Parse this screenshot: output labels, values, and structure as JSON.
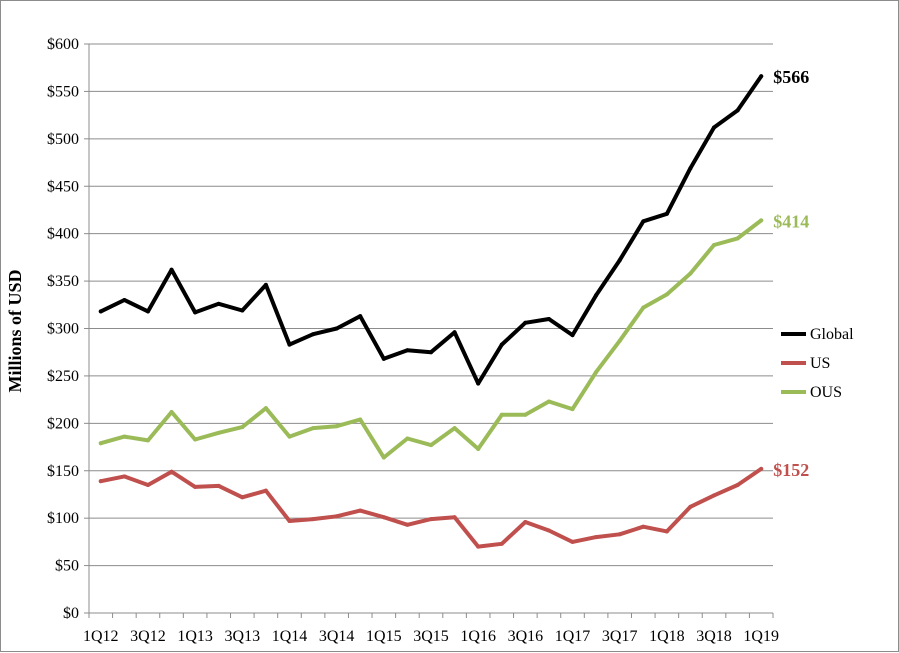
{
  "chart_data": {
    "type": "line",
    "title": "",
    "xlabel": "",
    "ylabel": "Millions of USD",
    "ylim": [
      0,
      600
    ],
    "y_ticks": [
      "$0",
      "$50",
      "$100",
      "$150",
      "$200",
      "$250",
      "$300",
      "$350",
      "$400",
      "$450",
      "$500",
      "$550",
      "$600"
    ],
    "y_tick_values": [
      0,
      50,
      100,
      150,
      200,
      250,
      300,
      350,
      400,
      450,
      500,
      550,
      600
    ],
    "grid": "horizontal",
    "legend_position": "right",
    "categories": [
      "1Q12",
      "2Q12",
      "3Q12",
      "4Q12",
      "1Q13",
      "2Q13",
      "3Q13",
      "4Q13",
      "1Q14",
      "2Q14",
      "3Q14",
      "4Q14",
      "1Q15",
      "2Q15",
      "3Q15",
      "4Q15",
      "1Q16",
      "2Q16",
      "3Q16",
      "4Q16",
      "1Q17",
      "2Q17",
      "3Q17",
      "4Q17",
      "1Q18",
      "2Q18",
      "3Q18",
      "4Q18",
      "1Q19"
    ],
    "x_tick_labels": [
      "1Q12",
      "3Q12",
      "1Q13",
      "3Q13",
      "1Q14",
      "3Q14",
      "1Q15",
      "3Q15",
      "1Q16",
      "3Q16",
      "1Q17",
      "3Q17",
      "1Q18",
      "3Q18",
      "1Q19"
    ],
    "series": [
      {
        "name": "Global",
        "color": "#000000",
        "values": [
          318,
          330,
          318,
          362,
          317,
          326,
          319,
          346,
          283,
          294,
          300,
          313,
          268,
          277,
          275,
          296,
          242,
          283,
          306,
          310,
          293,
          335,
          372,
          413,
          421,
          469,
          512,
          530,
          566
        ],
        "end_label": "$566"
      },
      {
        "name": "US",
        "color": "#c0504d",
        "values": [
          139,
          144,
          135,
          149,
          133,
          134,
          122,
          129,
          97,
          99,
          102,
          108,
          101,
          93,
          99,
          101,
          70,
          73,
          96,
          87,
          75,
          80,
          83,
          91,
          86,
          112,
          124,
          135,
          152
        ],
        "end_label": "$152"
      },
      {
        "name": "OUS",
        "color": "#9bbb59",
        "values": [
          179,
          186,
          182,
          212,
          183,
          190,
          196,
          216,
          186,
          195,
          197,
          204,
          164,
          184,
          177,
          195,
          173,
          209,
          209,
          223,
          215,
          254,
          287,
          322,
          336,
          358,
          388,
          395,
          414
        ],
        "end_label": "$414"
      }
    ]
  }
}
